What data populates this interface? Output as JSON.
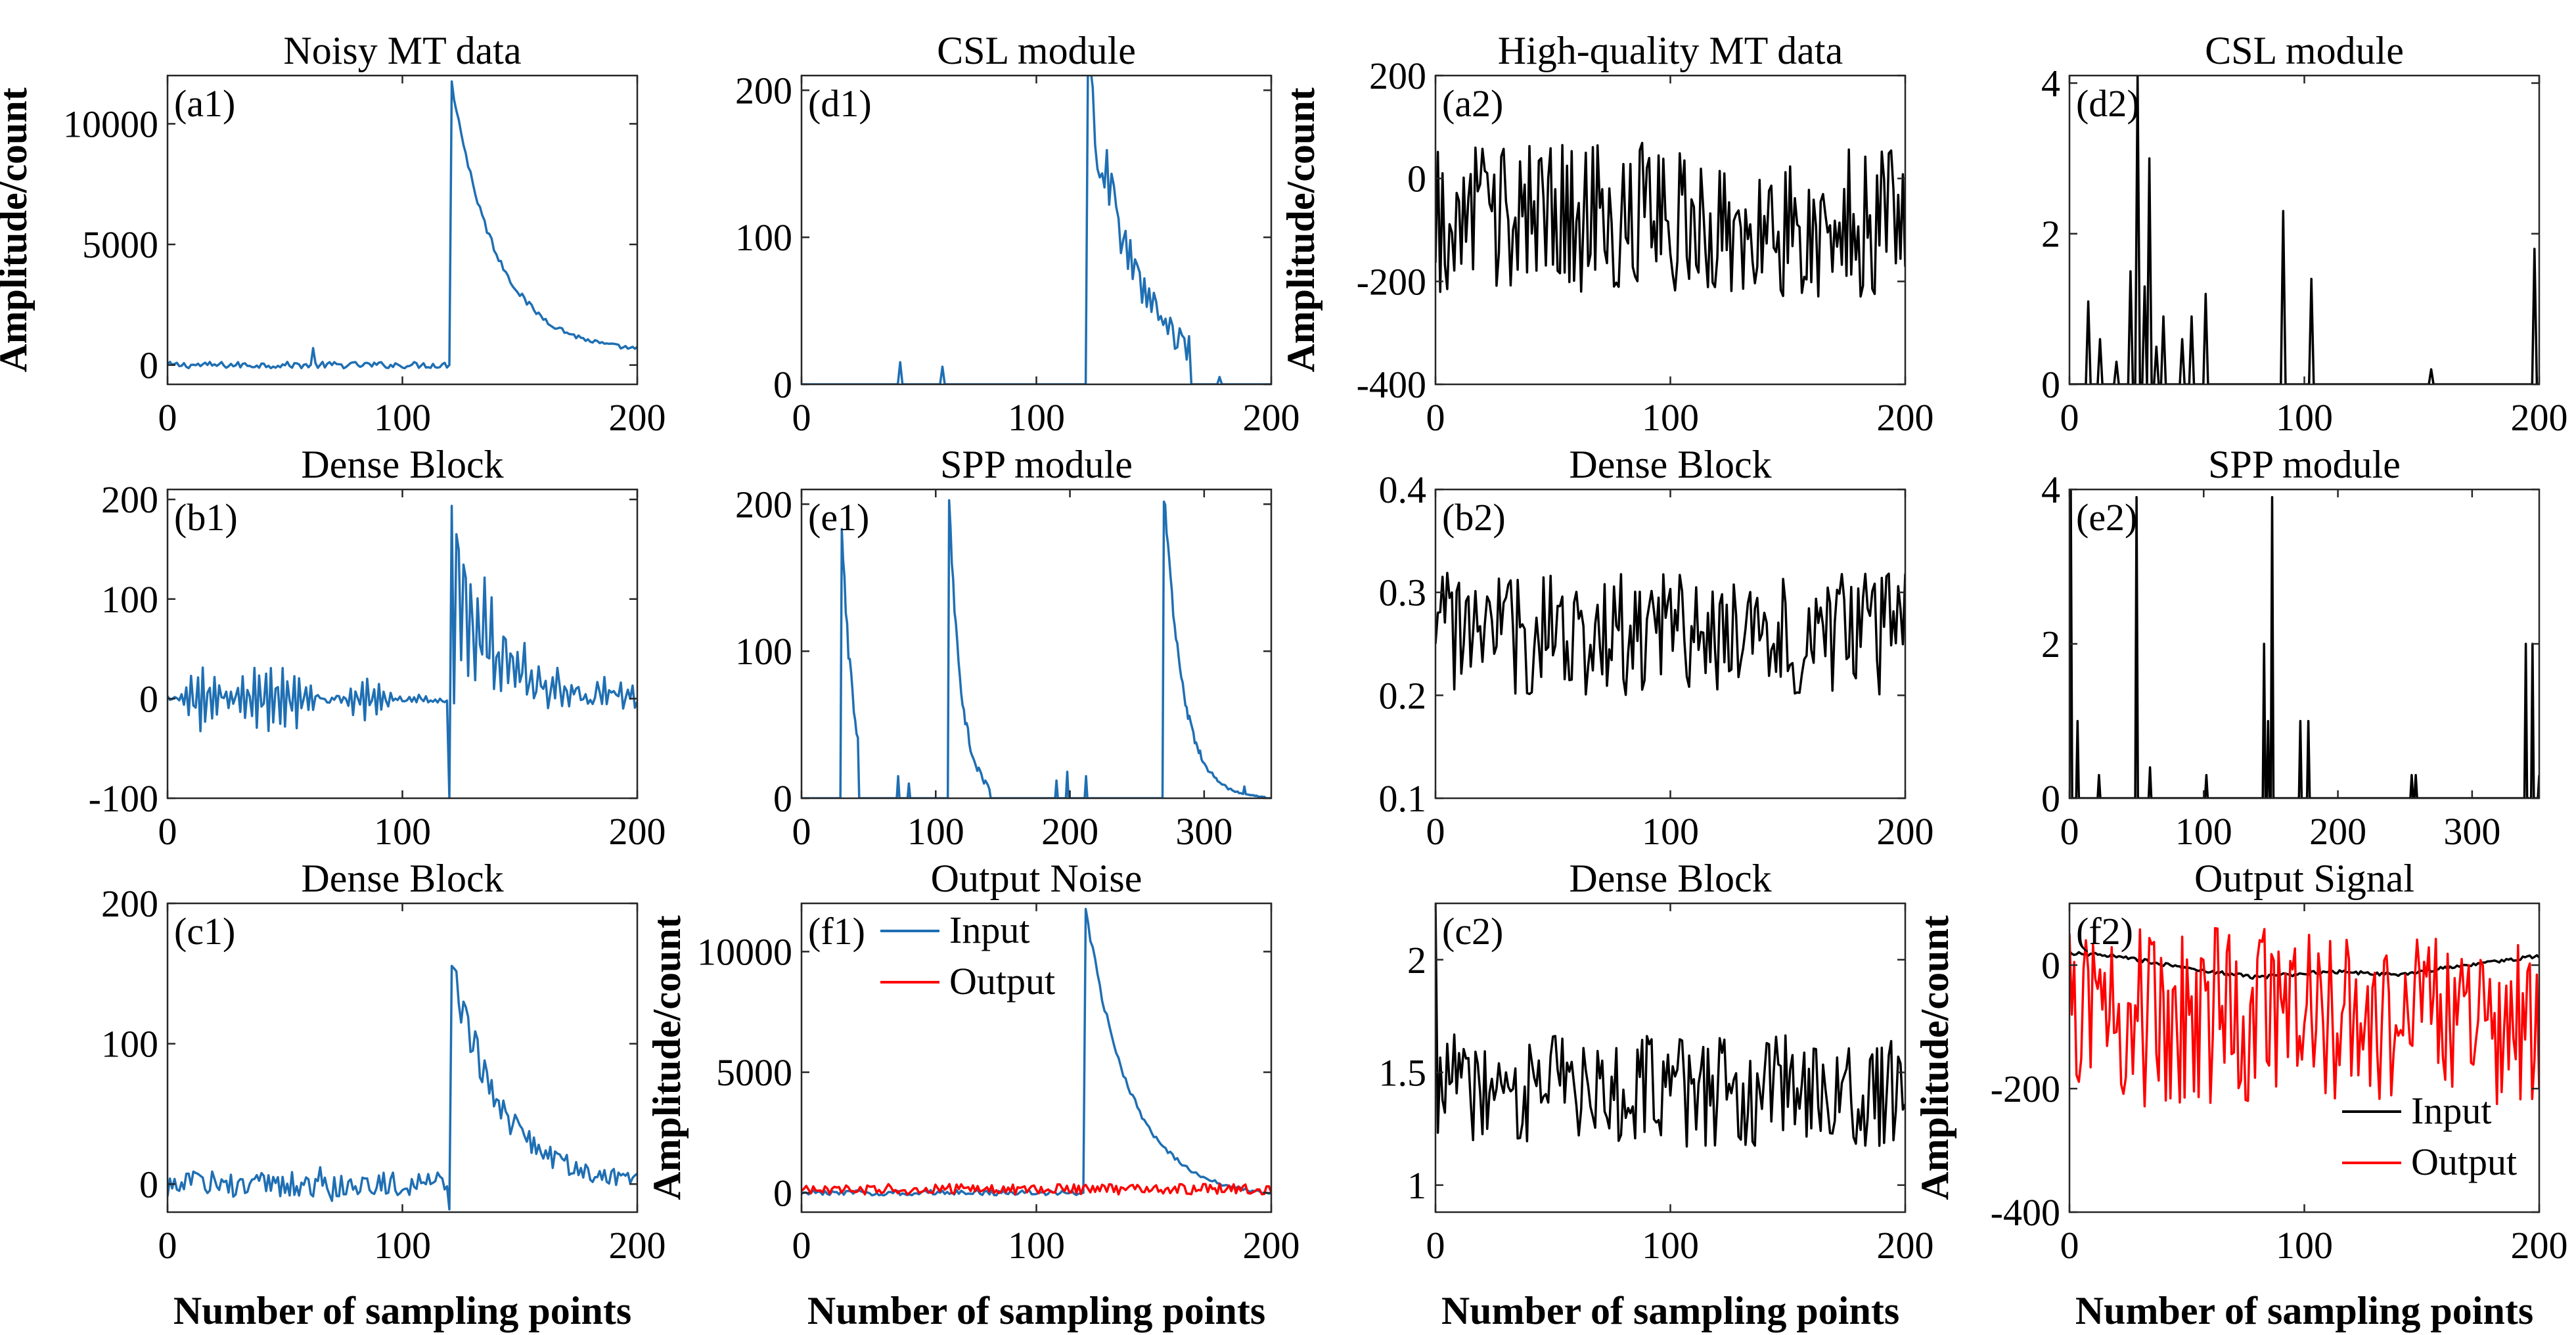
{
  "figure": {
    "colors": {
      "blue": "#1f6fb3",
      "black": "#000000",
      "red": "#ff0000"
    },
    "shared_xlabel": "Number of sampling points",
    "shared_ylabel": "Amplitude/count"
  },
  "chart_data": [
    {
      "id": "a1",
      "tag": "(a1)",
      "type": "line",
      "title": "Noisy MT data",
      "xlabel": "",
      "ylabel": "Amplitude/count",
      "xlim": [
        0,
        200
      ],
      "ylim": [
        -800,
        12000
      ],
      "xticks": [
        0,
        100,
        200
      ],
      "xtick_labels": [
        "0",
        "100",
        "200"
      ],
      "yticks": [
        0,
        5000,
        10000
      ],
      "ytick_labels": [
        "0",
        "5000",
        "10000"
      ],
      "series": [
        {
          "color": "#1f6fb3",
          "style": "decay",
          "peak_x": 120,
          "peak_y": 11800,
          "tail": 500,
          "decay": 19,
          "noise": 180,
          "base": 0,
          "blips": [
            [
              62,
              700
            ]
          ]
        }
      ]
    },
    {
      "id": "d1",
      "tag": "(d1)",
      "type": "line",
      "title": "CSL module",
      "xlabel": "",
      "ylabel": "",
      "xlim": [
        0,
        200
      ],
      "ylim": [
        0,
        210
      ],
      "xticks": [
        0,
        100,
        200
      ],
      "xtick_labels": [
        "0",
        "100",
        "200"
      ],
      "yticks": [
        0,
        100,
        200
      ],
      "ytick_labels": [
        "0",
        "100",
        "200"
      ],
      "series": [
        {
          "color": "#1f6fb3",
          "style": "relu-decay",
          "peak_x": 122,
          "peak_y": 208,
          "decay": 20,
          "noise": 28,
          "cutoff": 165,
          "blips": [
            [
              42,
              15
            ],
            [
              60,
              12
            ],
            [
              178,
              5
            ]
          ]
        }
      ]
    },
    {
      "id": "a2",
      "tag": "(a2)",
      "type": "line",
      "title": "High-quality MT data",
      "xlabel": "",
      "ylabel": "Amplitude/count",
      "xlim": [
        0,
        200
      ],
      "ylim": [
        -400,
        200
      ],
      "xticks": [
        0,
        100,
        200
      ],
      "xtick_labels": [
        "0",
        "100",
        "200"
      ],
      "yticks": [
        -400,
        -200,
        0,
        200
      ],
      "ytick_labels": [
        "-400",
        "-200",
        "0",
        "200"
      ],
      "series": [
        {
          "color": "#000000",
          "style": "noise",
          "mean": -80,
          "amp": 150,
          "min": -340,
          "max": 95,
          "seed": 3
        }
      ]
    },
    {
      "id": "d2",
      "tag": "(d2)",
      "type": "line",
      "title": "CSL module",
      "xlabel": "",
      "ylabel": "",
      "xlim": [
        0,
        200
      ],
      "ylim": [
        0,
        4.1
      ],
      "xticks": [
        0,
        100,
        200
      ],
      "xtick_labels": [
        "0",
        "100",
        "200"
      ],
      "yticks": [
        0,
        2,
        4
      ],
      "ytick_labels": [
        "0",
        "2",
        "4"
      ],
      "series": [
        {
          "color": "#000000",
          "style": "spikes",
          "spikes": [
            [
              8,
              1.1
            ],
            [
              13,
              0.6
            ],
            [
              20,
              0.3
            ],
            [
              26,
              1.5
            ],
            [
              29,
              4.1
            ],
            [
              32,
              1.3
            ],
            [
              34,
              3.0
            ],
            [
              37,
              0.5
            ],
            [
              40,
              0.9
            ],
            [
              48,
              0.6
            ],
            [
              52,
              0.9
            ],
            [
              58,
              1.2
            ],
            [
              91,
              2.3
            ],
            [
              103,
              1.4
            ],
            [
              154,
              0.2
            ],
            [
              198,
              1.8
            ]
          ]
        }
      ]
    },
    {
      "id": "b1",
      "tag": "(b1)",
      "type": "line",
      "title": "Dense Block",
      "xlabel": "",
      "ylabel": "",
      "xlim": [
        0,
        200
      ],
      "ylim": [
        -100,
        210
      ],
      "xticks": [
        0,
        100,
        200
      ],
      "xtick_labels": [
        "0",
        "100",
        "200"
      ],
      "yticks": [
        -100,
        0,
        100,
        200
      ],
      "ytick_labels": [
        "-100",
        "0",
        "100",
        "200"
      ],
      "series": [
        {
          "color": "#1f6fb3",
          "style": "osc-decay",
          "peak_x": 120,
          "peak_y": 210,
          "min_y": -100,
          "tail": 0,
          "decay": 20,
          "noise": 45,
          "packets": [
            [
              15,
              35,
              10
            ],
            [
              45,
              35,
              22
            ],
            [
              85,
              20,
              12
            ]
          ]
        }
      ]
    },
    {
      "id": "e1",
      "tag": "(e1)",
      "type": "line",
      "title": "SPP module",
      "xlabel": "",
      "ylabel": "",
      "xlim": [
        0,
        350
      ],
      "ylim": [
        0,
        210
      ],
      "xticks": [
        0,
        100,
        200,
        300
      ],
      "xtick_labels": [
        "0",
        "100",
        "200",
        "300"
      ],
      "yticks": [
        0,
        100,
        200
      ],
      "ytick_labels": [
        "0",
        "100",
        "200"
      ],
      "series": [
        {
          "color": "#1f6fb3",
          "style": "multi-decay",
          "peaks": [
            [
              30,
              190,
              8,
              42
            ],
            [
              110,
              208,
              9,
              140
            ],
            [
              270,
              208,
              14,
              345
            ]
          ],
          "blips": [
            [
              72,
              15
            ],
            [
              80,
              10
            ],
            [
              190,
              12
            ],
            [
              198,
              18
            ],
            [
              212,
              15
            ],
            [
              330,
              8
            ]
          ]
        }
      ]
    },
    {
      "id": "b2",
      "tag": "(b2)",
      "type": "line",
      "title": "Dense Block",
      "xlabel": "",
      "ylabel": "",
      "xlim": [
        0,
        200
      ],
      "ylim": [
        0.1,
        0.4
      ],
      "xticks": [
        0,
        100,
        200
      ],
      "xtick_labels": [
        "0",
        "100",
        "200"
      ],
      "yticks": [
        0.1,
        0.2,
        0.3,
        0.4
      ],
      "ytick_labels": [
        "0.1",
        "0.2",
        "0.3",
        "0.4"
      ],
      "series": [
        {
          "color": "#000000",
          "style": "noise",
          "mean": 0.26,
          "amp": 0.06,
          "min": 0.17,
          "max": 0.37,
          "seed": 7
        }
      ]
    },
    {
      "id": "e2",
      "tag": "(e2)",
      "type": "line",
      "title": "SPP module",
      "xlabel": "",
      "ylabel": "",
      "xlim": [
        0,
        350
      ],
      "ylim": [
        0,
        4
      ],
      "xticks": [
        0,
        100,
        200,
        300
      ],
      "xtick_labels": [
        "0",
        "100",
        "200",
        "300"
      ],
      "yticks": [
        0,
        2,
        4
      ],
      "ytick_labels": [
        "0",
        "2",
        "4"
      ],
      "series": [
        {
          "color": "#000000",
          "style": "spikes",
          "spikes": [
            [
              1,
              4.0
            ],
            [
              6,
              1.0
            ],
            [
              22,
              0.3
            ],
            [
              50,
              3.9
            ],
            [
              60,
              0.4
            ],
            [
              102,
              0.3
            ],
            [
              145,
              2.0
            ],
            [
              148,
              1.0
            ],
            [
              151,
              3.9
            ],
            [
              172,
              1.0
            ],
            [
              178,
              1.0
            ],
            [
              255,
              0.3
            ],
            [
              258,
              0.3
            ],
            [
              340,
              2.0
            ],
            [
              345,
              2.0
            ],
            [
              350,
              0.3
            ]
          ]
        }
      ]
    },
    {
      "id": "c1",
      "tag": "(c1)",
      "type": "line",
      "title": "Dense Block",
      "xlabel": "Number of sampling points",
      "ylabel": "",
      "xlim": [
        0,
        200
      ],
      "ylim": [
        -20,
        200
      ],
      "xticks": [
        0,
        100,
        200
      ],
      "xtick_labels": [
        "0",
        "100",
        "200"
      ],
      "yticks": [
        0,
        100,
        200
      ],
      "ytick_labels": [
        "0",
        "100",
        "200"
      ],
      "series": [
        {
          "color": "#1f6fb3",
          "style": "decay",
          "peak_x": 120,
          "peak_y": 158,
          "tail": 0,
          "decay": 20,
          "noise": 12,
          "base": 0,
          "dip": -18,
          "blips": [
            [
              65,
              12
            ],
            [
              70,
              -12
            ]
          ]
        }
      ]
    },
    {
      "id": "f1",
      "tag": "(f1)",
      "type": "line",
      "title": "Output Noise",
      "xlabel": "Number of sampling points",
      "ylabel": "Amplitude/count",
      "xlim": [
        0,
        200
      ],
      "ylim": [
        -800,
        12000
      ],
      "xticks": [
        0,
        100,
        200
      ],
      "xtick_labels": [
        "0",
        "100",
        "200"
      ],
      "yticks": [
        0,
        5000,
        10000
      ],
      "ytick_labels": [
        "0",
        "5000",
        "10000"
      ],
      "legend": {
        "placement": "top-left"
      },
      "series": [
        {
          "name": "Input",
          "color": "#1f6fb3",
          "style": "decay",
          "peak_x": 120,
          "peak_y": 11800,
          "tail": -200,
          "decay": 19,
          "noise": 150,
          "base": 0
        },
        {
          "name": "Output",
          "color": "#ff0000",
          "style": "noise",
          "mean": 150,
          "amp": 220,
          "min": -150,
          "max": 500,
          "seed": 11
        }
      ]
    },
    {
      "id": "c2",
      "tag": "(c2)",
      "type": "line",
      "title": "Dense Block",
      "xlabel": "Number of sampling points",
      "ylabel": "",
      "xlim": [
        0,
        200
      ],
      "ylim": [
        0.88,
        2.25
      ],
      "xticks": [
        0,
        100,
        200
      ],
      "xtick_labels": [
        "0",
        "100",
        "200"
      ],
      "yticks": [
        1,
        1.5,
        2
      ],
      "ytick_labels": [
        "1",
        "1.5",
        "2"
      ],
      "series": [
        {
          "color": "#000000",
          "style": "noise",
          "mean": 1.42,
          "amp": 0.25,
          "min": 0.9,
          "max": 2.05,
          "seed": 19,
          "start": 2.25
        }
      ]
    },
    {
      "id": "f2",
      "tag": "(f2)",
      "type": "line",
      "title": "Output Signal",
      "xlabel": "Number of sampling points",
      "ylabel": "Amplitude/count",
      "xlim": [
        0,
        200
      ],
      "ylim": [
        -400,
        100
      ],
      "xticks": [
        0,
        100,
        200
      ],
      "xtick_labels": [
        "0",
        "100",
        "200"
      ],
      "yticks": [
        -400,
        -200,
        0
      ],
      "ytick_labels": [
        "-400",
        "-200",
        "0"
      ],
      "legend": {
        "placement": "bottom-right"
      },
      "series": [
        {
          "name": "Input",
          "color": "#000000",
          "style": "smooth",
          "values": [
            [
              0,
              20
            ],
            [
              20,
              15
            ],
            [
              50,
              -5
            ],
            [
              80,
              -20
            ],
            [
              110,
              -10
            ],
            [
              140,
              -15
            ],
            [
              170,
              0
            ],
            [
              200,
              15
            ]
          ]
        },
        {
          "name": "Output",
          "color": "#ff0000",
          "style": "noise",
          "mean": -80,
          "amp": 150,
          "min": -340,
          "max": 95,
          "seed": 3
        }
      ]
    }
  ]
}
